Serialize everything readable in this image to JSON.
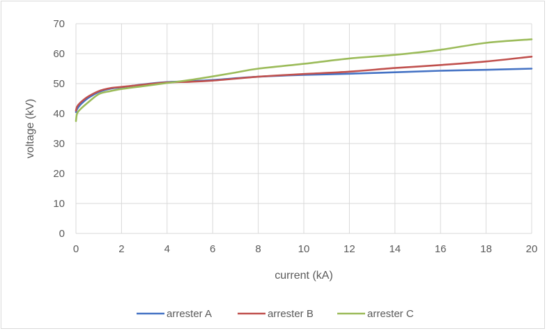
{
  "chart_data": {
    "type": "line",
    "title": "",
    "xlabel": "current (kA)",
    "ylabel": "voltage (kV)",
    "xlim": [
      0,
      20
    ],
    "ylim": [
      0,
      70
    ],
    "x_ticks": [
      0,
      2,
      4,
      6,
      8,
      10,
      12,
      14,
      16,
      18,
      20
    ],
    "y_ticks": [
      0,
      10,
      20,
      30,
      40,
      50,
      60,
      70
    ],
    "grid": true,
    "legend_position": "bottom",
    "series": [
      {
        "name": "arrester A",
        "color": "#4472c4",
        "x": [
          0,
          0.05,
          0.2,
          0.5,
          1,
          1.5,
          2,
          3,
          4,
          5,
          6,
          8,
          10,
          12,
          14,
          16,
          18,
          20
        ],
        "y": [
          40.5,
          41.5,
          43,
          45,
          47.2,
          48.3,
          48.8,
          49.8,
          50.5,
          50.8,
          51.2,
          52.3,
          52.9,
          53.3,
          53.8,
          54.3,
          54.6,
          55
        ]
      },
      {
        "name": "arrester B",
        "color": "#c0504d",
        "x": [
          0,
          0.05,
          0.2,
          0.5,
          1,
          1.5,
          2,
          3,
          4,
          5,
          6,
          8,
          10,
          12,
          14,
          16,
          18,
          20
        ],
        "y": [
          41,
          42.3,
          43.7,
          45.5,
          47.5,
          48.5,
          48.9,
          49.7,
          50.4,
          50.6,
          51,
          52.3,
          53.2,
          54,
          55.2,
          56.2,
          57.4,
          59
        ]
      },
      {
        "name": "arrester C",
        "color": "#9bbb59",
        "x": [
          0,
          0.05,
          0.2,
          0.5,
          1,
          1.5,
          2,
          3,
          4,
          5,
          6,
          7,
          8,
          10,
          12,
          14,
          16,
          18,
          20
        ],
        "y": [
          37.5,
          40,
          41.5,
          43.5,
          46.5,
          47.5,
          48.2,
          49.2,
          50.2,
          51.2,
          52.4,
          53.7,
          55,
          56.6,
          58.4,
          59.6,
          61.3,
          63.6,
          64.8
        ]
      }
    ]
  }
}
